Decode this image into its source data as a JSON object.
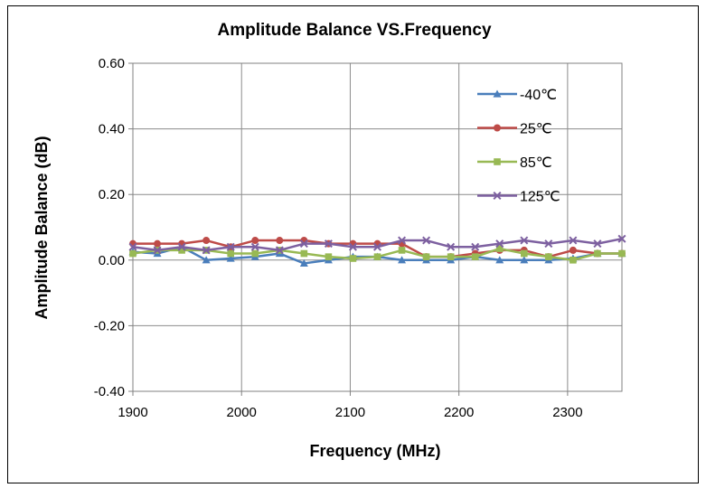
{
  "chart_data": {
    "type": "line",
    "title": "Amplitude Balance VS.Frequency",
    "xlabel": "Frequency (MHz)",
    "ylabel": "Amplitude Balance (dB)",
    "xlim": [
      1900,
      2350
    ],
    "ylim": [
      -0.4,
      0.6
    ],
    "x_ticks": [
      1900,
      2000,
      2100,
      2200,
      2300
    ],
    "x_tick_labels": [
      "1900",
      "2000",
      "2100",
      "2200",
      "2300"
    ],
    "y_ticks": [
      -0.4,
      -0.2,
      0.0,
      0.2,
      0.4,
      0.6
    ],
    "y_tick_labels": [
      "-0.40",
      "-0.20",
      "0.00",
      "0.20",
      "0.40",
      "0.60"
    ],
    "grid": true,
    "legend_position": "top-right",
    "x": [
      1900,
      1922.5,
      1945,
      1967.5,
      1990,
      2012.5,
      2035,
      2057.5,
      2080,
      2102.5,
      2125,
      2147.5,
      2170,
      2192.5,
      2215,
      2237.5,
      2260,
      2282.5,
      2305,
      2327.5,
      2350
    ],
    "series": [
      {
        "name": "-40℃",
        "color": "#4a7ebb",
        "marker": "triangle",
        "values": [
          0.025,
          0.02,
          0.04,
          0.0,
          0.005,
          0.01,
          0.02,
          -0.01,
          0.0,
          0.01,
          0.01,
          0.0,
          0.0,
          0.0,
          0.01,
          0.0,
          0.0,
          0.0,
          0.005,
          0.02,
          0.02
        ]
      },
      {
        "name": "25℃",
        "color": "#be4b48",
        "marker": "circle",
        "values": [
          0.05,
          0.05,
          0.05,
          0.06,
          0.04,
          0.06,
          0.06,
          0.06,
          0.05,
          0.05,
          0.05,
          0.05,
          0.01,
          0.01,
          0.02,
          0.03,
          0.03,
          0.01,
          0.03,
          0.02,
          0.02
        ]
      },
      {
        "name": "85℃",
        "color": "#98b954",
        "marker": "square",
        "values": [
          0.02,
          0.03,
          0.03,
          0.03,
          0.02,
          0.02,
          0.03,
          0.02,
          0.01,
          0.005,
          0.01,
          0.03,
          0.01,
          0.01,
          0.01,
          0.035,
          0.02,
          0.01,
          0.0,
          0.02,
          0.02
        ]
      },
      {
        "name": "125℃",
        "color": "#7d60a0",
        "marker": "x",
        "values": [
          0.04,
          0.03,
          0.04,
          0.03,
          0.04,
          0.04,
          0.03,
          0.05,
          0.05,
          0.04,
          0.04,
          0.06,
          0.06,
          0.04,
          0.04,
          0.05,
          0.06,
          0.05,
          0.06,
          0.05,
          0.065
        ]
      }
    ]
  }
}
